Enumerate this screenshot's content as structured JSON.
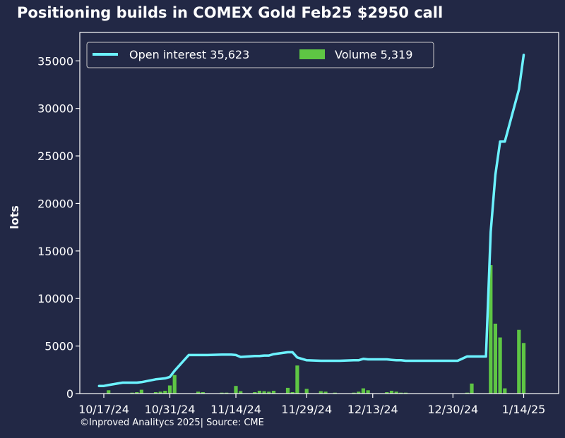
{
  "chart_data": {
    "type": "bar+line",
    "title": "Positioning builds in COMEX Gold Feb25 $2950 call",
    "ylabel": "lots",
    "xlabel": "",
    "ylim": [
      0,
      37000
    ],
    "yticks": [
      0,
      5000,
      10000,
      15000,
      20000,
      25000,
      30000,
      35000
    ],
    "xticks": [
      "10/17/24",
      "10/31/24",
      "11/14/24",
      "11/29/24",
      "12/13/24",
      "12/30/24",
      "1/14/25"
    ],
    "legend_position": "top-left",
    "grid": false,
    "source": "©Inproved Analitycs 2025| Source: CME",
    "colors": {
      "background": "#222845",
      "open_interest": "#6cf2ff",
      "volume": "#5ec644",
      "frame": "#ffffff"
    },
    "series": [
      {
        "name": "Open interest 35,623",
        "type": "line",
        "points": [
          [
            "2024-10-16",
            800
          ],
          [
            "2024-10-17",
            800
          ],
          [
            "2024-10-18",
            900
          ],
          [
            "2024-10-21",
            1150
          ],
          [
            "2024-10-22",
            1150
          ],
          [
            "2024-10-23",
            1150
          ],
          [
            "2024-10-24",
            1150
          ],
          [
            "2024-10-25",
            1200
          ],
          [
            "2024-10-28",
            1500
          ],
          [
            "2024-10-29",
            1550
          ],
          [
            "2024-10-30",
            1600
          ],
          [
            "2024-10-31",
            1750
          ],
          [
            "2024-11-01",
            2400
          ],
          [
            "2024-11-04",
            4050
          ],
          [
            "2024-11-05",
            4050
          ],
          [
            "2024-11-06",
            4050
          ],
          [
            "2024-11-07",
            4050
          ],
          [
            "2024-11-08",
            4050
          ],
          [
            "2024-11-11",
            4100
          ],
          [
            "2024-11-12",
            4100
          ],
          [
            "2024-11-13",
            4100
          ],
          [
            "2024-11-14",
            4050
          ],
          [
            "2024-11-15",
            3850
          ],
          [
            "2024-11-18",
            3950
          ],
          [
            "2024-11-19",
            3950
          ],
          [
            "2024-11-20",
            4000
          ],
          [
            "2024-11-21",
            4000
          ],
          [
            "2024-11-22",
            4150
          ],
          [
            "2024-11-25",
            4350
          ],
          [
            "2024-11-26",
            4350
          ],
          [
            "2024-11-27",
            3800
          ],
          [
            "2024-11-29",
            3500
          ],
          [
            "2024-12-02",
            3450
          ],
          [
            "2024-12-03",
            3450
          ],
          [
            "2024-12-04",
            3450
          ],
          [
            "2024-12-05",
            3450
          ],
          [
            "2024-12-06",
            3450
          ],
          [
            "2024-12-09",
            3500
          ],
          [
            "2024-12-10",
            3500
          ],
          [
            "2024-12-11",
            3650
          ],
          [
            "2024-12-12",
            3600
          ],
          [
            "2024-12-13",
            3600
          ],
          [
            "2024-12-16",
            3600
          ],
          [
            "2024-12-17",
            3550
          ],
          [
            "2024-12-18",
            3500
          ],
          [
            "2024-12-19",
            3500
          ],
          [
            "2024-12-20",
            3450
          ],
          [
            "2024-12-23",
            3450
          ],
          [
            "2024-12-24",
            3450
          ],
          [
            "2024-12-26",
            3450
          ],
          [
            "2024-12-27",
            3450
          ],
          [
            "2024-12-30",
            3450
          ],
          [
            "2024-12-31",
            3450
          ],
          [
            "2025-01-02",
            3900
          ],
          [
            "2025-01-03",
            3900
          ],
          [
            "2025-01-06",
            3900
          ],
          [
            "2025-01-07",
            17000
          ],
          [
            "2025-01-08",
            23000
          ],
          [
            "2025-01-09",
            26500
          ],
          [
            "2025-01-10",
            26500
          ],
          [
            "2025-01-13",
            32000
          ],
          [
            "2025-01-14",
            35623
          ]
        ]
      },
      {
        "name": "Volume 5,319",
        "type": "bar",
        "points": [
          [
            "2024-10-18",
            350
          ],
          [
            "2024-10-23",
            100
          ],
          [
            "2024-10-24",
            150
          ],
          [
            "2024-10-25",
            400
          ],
          [
            "2024-10-28",
            150
          ],
          [
            "2024-10-29",
            200
          ],
          [
            "2024-10-30",
            300
          ],
          [
            "2024-10-31",
            850
          ],
          [
            "2024-11-01",
            1950
          ],
          [
            "2024-11-06",
            200
          ],
          [
            "2024-11-07",
            150
          ],
          [
            "2024-11-11",
            100
          ],
          [
            "2024-11-12",
            100
          ],
          [
            "2024-11-14",
            800
          ],
          [
            "2024-11-15",
            250
          ],
          [
            "2024-11-18",
            150
          ],
          [
            "2024-11-19",
            300
          ],
          [
            "2024-11-20",
            250
          ],
          [
            "2024-11-21",
            200
          ],
          [
            "2024-11-22",
            300
          ],
          [
            "2024-11-25",
            600
          ],
          [
            "2024-11-26",
            150
          ],
          [
            "2024-11-27",
            2950
          ],
          [
            "2024-11-29",
            500
          ],
          [
            "2024-12-02",
            250
          ],
          [
            "2024-12-03",
            200
          ],
          [
            "2024-12-05",
            100
          ],
          [
            "2024-12-09",
            100
          ],
          [
            "2024-12-10",
            200
          ],
          [
            "2024-12-11",
            550
          ],
          [
            "2024-12-12",
            350
          ],
          [
            "2024-12-16",
            150
          ],
          [
            "2024-12-17",
            300
          ],
          [
            "2024-12-18",
            200
          ],
          [
            "2024-12-19",
            100
          ],
          [
            "2024-12-20",
            100
          ],
          [
            "2025-01-02",
            100
          ],
          [
            "2025-01-03",
            1050
          ],
          [
            "2025-01-07",
            13500
          ],
          [
            "2025-01-08",
            7350
          ],
          [
            "2025-01-09",
            5900
          ],
          [
            "2025-01-10",
            550
          ],
          [
            "2025-01-13",
            6700
          ],
          [
            "2025-01-14",
            5319
          ]
        ]
      }
    ]
  }
}
